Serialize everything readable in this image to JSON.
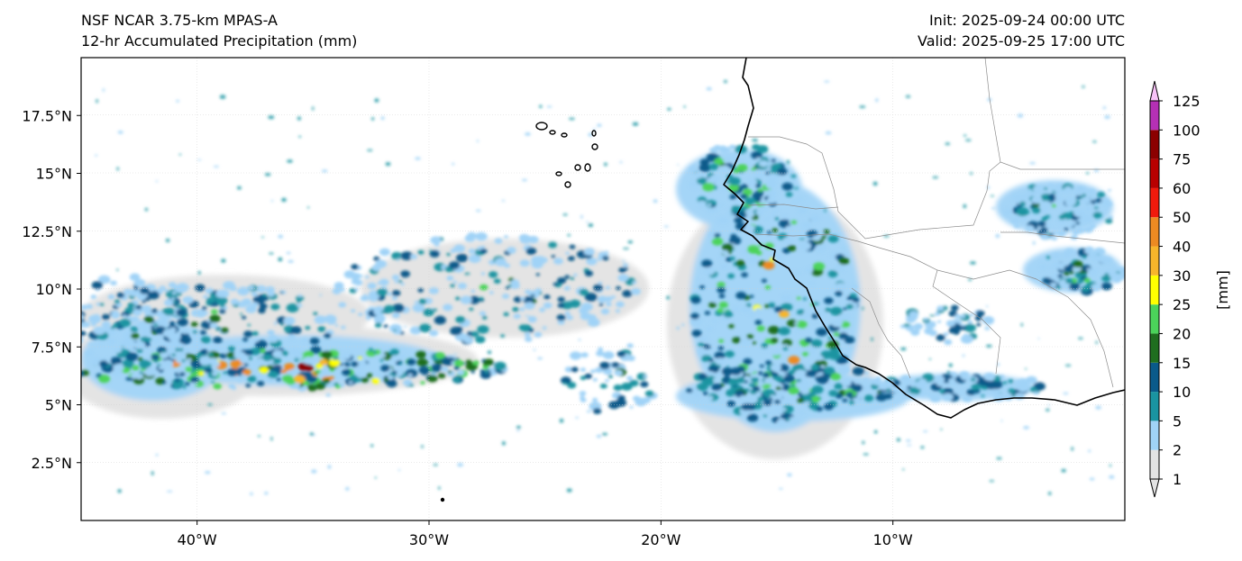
{
  "header": {
    "model": "NSF NCAR 3.75-km MPAS-A",
    "product": "12-hr Accumulated Precipitation (mm)",
    "init": "Init: 2025-09-24 00:00 UTC",
    "valid": "Valid: 2025-09-25 17:00 UTC"
  },
  "map": {
    "lon_range": [
      -45,
      0
    ],
    "lat_range": [
      0,
      20
    ],
    "lon_ticks": [
      -40,
      -30,
      -20,
      -10
    ],
    "lon_tick_labels": [
      "40°W",
      "30°W",
      "20°W",
      "10°W"
    ],
    "lat_ticks": [
      2.5,
      5,
      7.5,
      10,
      12.5,
      15,
      17.5
    ],
    "lat_tick_labels": [
      "2.5°N",
      "5°N",
      "7.5°N",
      "10°N",
      "12.5°N",
      "15°N",
      "17.5°N"
    ]
  },
  "colorbar": {
    "unit_label": "[mm]",
    "levels": [
      "1",
      "2",
      "5",
      "10",
      "15",
      "20",
      "25",
      "30",
      "40",
      "50",
      "60",
      "75",
      "100",
      "125"
    ],
    "colors": [
      "#e3e3e3",
      "#a0d3f7",
      "#1a94a1",
      "#0a5a8a",
      "#1f6e1f",
      "#4bd35a",
      "#ffff00",
      "#f7b52b",
      "#ec8a22",
      "#f01a0c",
      "#b80000",
      "#8b0000",
      "#b530b5",
      "#f7c2f7"
    ]
  }
}
